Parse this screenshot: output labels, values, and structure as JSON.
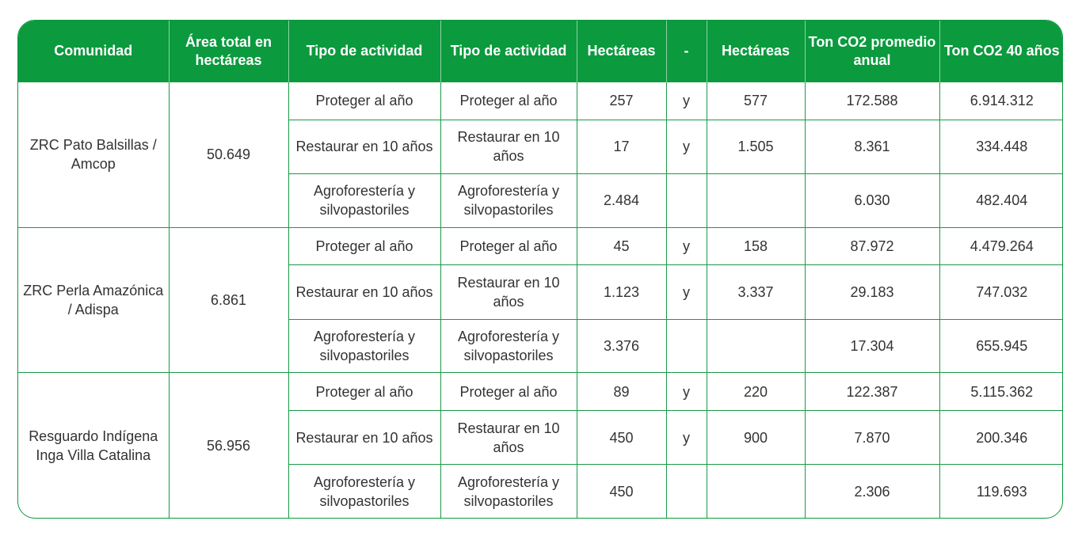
{
  "colors": {
    "header_bg": "#0b9a3e",
    "header_text": "#ffffff",
    "grid": "#1a9a46",
    "body_text": "#333333"
  },
  "headers": [
    "Comunidad",
    "Área total en hectáreas",
    "Tipo de actividad",
    "Tipo de actividad",
    "Hectáreas",
    "-",
    "Hectáreas",
    "Ton CO2 promedio anual",
    "Ton CO2 40 años"
  ],
  "groups": [
    {
      "comunidad": "ZRC Pato Balsillas / Amcop",
      "area": "50.649",
      "rows": [
        {
          "tipo1": "Proteger al año",
          "tipo2": "Proteger al año",
          "ha1": "257",
          "sep": "y",
          "ha2": "577",
          "prom": "172.588",
          "total": "6.914.312"
        },
        {
          "tipo1": "Restaurar en 10 años",
          "tipo2": "Restaurar en 10 años",
          "ha1": "17",
          "sep": "y",
          "ha2": "1.505",
          "prom": "8.361",
          "total": "334.448"
        },
        {
          "tipo1": "Agroforestería y silvopastoriles",
          "tipo2": "Agroforestería y silvopastoriles",
          "ha1": "2.484",
          "sep": "",
          "ha2": "",
          "prom": "6.030",
          "total": "482.404"
        }
      ]
    },
    {
      "comunidad": "ZRC Perla Amazónica / Adispa",
      "area": "6.861",
      "rows": [
        {
          "tipo1": "Proteger al año",
          "tipo2": "Proteger al año",
          "ha1": "45",
          "sep": "y",
          "ha2": "158",
          "prom": "87.972",
          "total": "4.479.264"
        },
        {
          "tipo1": "Restaurar en 10 años",
          "tipo2": "Restaurar en 10 años",
          "ha1": "1.123",
          "sep": "y",
          "ha2": "3.337",
          "prom": "29.183",
          "total": "747.032"
        },
        {
          "tipo1": "Agroforestería y silvopastoriles",
          "tipo2": "Agroforestería y silvopastoriles",
          "ha1": "3.376",
          "sep": "",
          "ha2": "",
          "prom": "17.304",
          "total": "655.945"
        }
      ]
    },
    {
      "comunidad": "Resguardo Indígena Inga Villa Catalina",
      "area": "56.956",
      "rows": [
        {
          "tipo1": "Proteger al año",
          "tipo2": "Proteger al año",
          "ha1": "89",
          "sep": "y",
          "ha2": "220",
          "prom": "122.387",
          "total": "5.115.362"
        },
        {
          "tipo1": "Restaurar en 10 años",
          "tipo2": "Restaurar en 10 años",
          "ha1": "450",
          "sep": "y",
          "ha2": "900",
          "prom": "7.870",
          "total": "200.346"
        },
        {
          "tipo1": "Agroforestería y silvopastoriles",
          "tipo2": "Agroforestería y silvopastoriles",
          "ha1": "450",
          "sep": "",
          "ha2": "",
          "prom": "2.306",
          "total": "119.693"
        }
      ]
    }
  ]
}
